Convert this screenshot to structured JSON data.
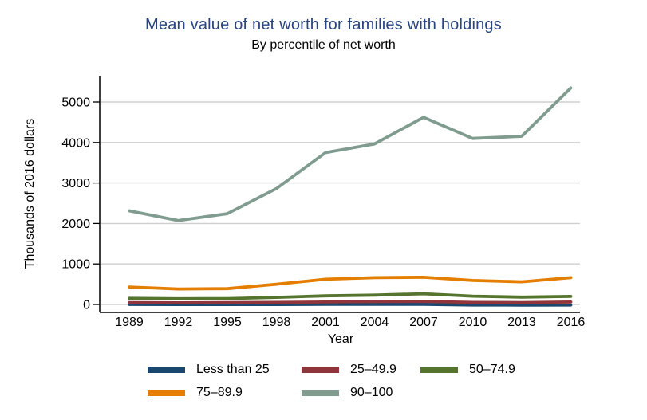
{
  "chart_data": {
    "type": "line",
    "title": "Mean value of net worth for families with holdings",
    "subtitle": "By percentile of net worth",
    "title_color": "#2a4480",
    "xlabel": "Year",
    "ylabel": "Thousands of 2016 dollars",
    "x": [
      1989,
      1992,
      1995,
      1998,
      2001,
      2004,
      2007,
      2010,
      2013,
      2016
    ],
    "yticks": [
      0,
      1000,
      2000,
      3000,
      4000,
      5000
    ],
    "ylim": [
      -170,
      5670
    ],
    "grid": "horizontal-only",
    "gridline_color": "#cfcfcf",
    "axis_color": "#000000",
    "legend_position": "bottom",
    "series": [
      {
        "name": "Less than 25",
        "color": "#1a476f",
        "values": [
          0,
          -2,
          -2,
          -1,
          1,
          2,
          2,
          -13,
          -15,
          -13
        ]
      },
      {
        "name": "25–49.9",
        "color": "#90353b",
        "values": [
          47,
          42,
          45,
          52,
          62,
          68,
          74,
          52,
          48,
          62
        ]
      },
      {
        "name": "50–74.9",
        "color": "#55752f",
        "values": [
          152,
          141,
          146,
          175,
          212,
          230,
          264,
          205,
          182,
          199
        ]
      },
      {
        "name": "75–89.9",
        "color": "#e37e00",
        "values": [
          432,
          381,
          390,
          500,
          622,
          661,
          671,
          592,
          560,
          662
        ]
      },
      {
        "name": "90–100",
        "color": "#7f9c8f",
        "values": [
          2313,
          2072,
          2243,
          2862,
          3750,
          3964,
          4622,
          4101,
          4153,
          5346
        ]
      }
    ]
  }
}
